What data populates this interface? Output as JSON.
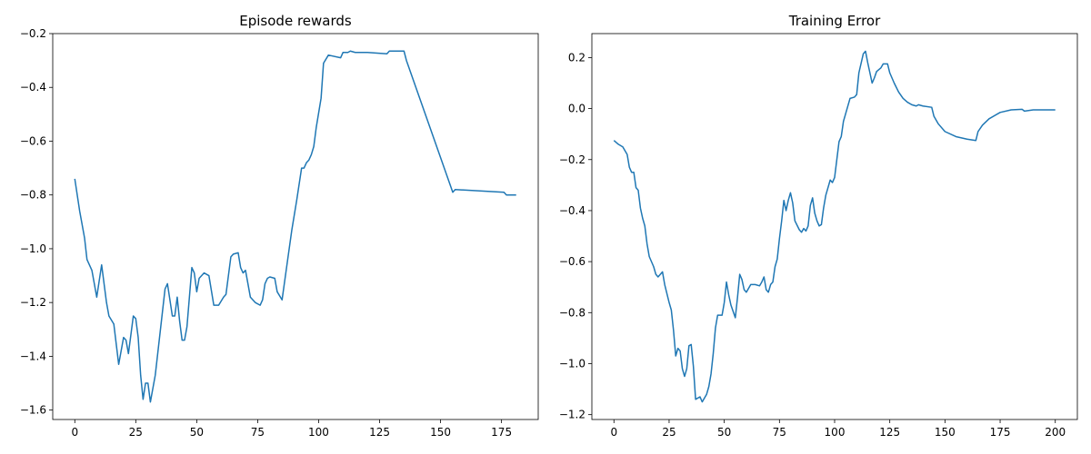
{
  "chart_data": [
    {
      "type": "line",
      "title": "Episode rewards",
      "color": "#1f77b4",
      "x": [
        0,
        2,
        4,
        5,
        7,
        9,
        11,
        13,
        14,
        16,
        18,
        20,
        21,
        22,
        24,
        25,
        26,
        27,
        28,
        29,
        30,
        31,
        33,
        35,
        37,
        38,
        40,
        41,
        42,
        43,
        44,
        45,
        46,
        48,
        49,
        50,
        51,
        53,
        55,
        57,
        59,
        61,
        62,
        64,
        65,
        67,
        68,
        69,
        70,
        71,
        72,
        74,
        76,
        77,
        78,
        79,
        80,
        82,
        83,
        85,
        87,
        89,
        91,
        93,
        94,
        95,
        96,
        97,
        98,
        99,
        101,
        102,
        104,
        109,
        110,
        112,
        113,
        115,
        120,
        128,
        129,
        135,
        136,
        155,
        156,
        176,
        177,
        181
      ],
      "values": [
        -0.74,
        -0.86,
        -0.96,
        -1.04,
        -1.08,
        -1.18,
        -1.06,
        -1.2,
        -1.25,
        -1.28,
        -1.43,
        -1.33,
        -1.34,
        -1.39,
        -1.25,
        -1.26,
        -1.33,
        -1.47,
        -1.56,
        -1.5,
        -1.5,
        -1.57,
        -1.47,
        -1.31,
        -1.15,
        -1.13,
        -1.25,
        -1.25,
        -1.18,
        -1.27,
        -1.34,
        -1.34,
        -1.29,
        -1.07,
        -1.09,
        -1.16,
        -1.11,
        -1.09,
        -1.1,
        -1.21,
        -1.21,
        -1.18,
        -1.17,
        -1.03,
        -1.02,
        -1.015,
        -1.07,
        -1.09,
        -1.08,
        -1.13,
        -1.18,
        -1.2,
        -1.21,
        -1.19,
        -1.13,
        -1.11,
        -1.105,
        -1.11,
        -1.16,
        -1.19,
        -1.06,
        -0.93,
        -0.82,
        -0.7,
        -0.7,
        -0.68,
        -0.67,
        -0.65,
        -0.62,
        -0.55,
        -0.44,
        -0.31,
        -0.28,
        -0.29,
        -0.27,
        -0.27,
        -0.265,
        -0.27,
        -0.27,
        -0.275,
        -0.265,
        -0.265,
        -0.3,
        -0.79,
        -0.78,
        -0.79,
        -0.8,
        -0.8
      ],
      "xlim": [
        -9.05,
        190.05
      ],
      "ylim": [
        -1.635,
        -0.2
      ],
      "xticks": [
        0,
        25,
        50,
        75,
        100,
        125,
        150,
        175
      ],
      "yticks": [
        {
          "value": -1.6,
          "label": "−1.6"
        },
        {
          "value": -1.4,
          "label": "−1.4"
        },
        {
          "value": -1.2,
          "label": "−1.2"
        },
        {
          "value": -1.0,
          "label": "−1.0"
        },
        {
          "value": -0.8,
          "label": "−0.8"
        },
        {
          "value": -0.6,
          "label": "−0.6"
        },
        {
          "value": -0.4,
          "label": "−0.4"
        },
        {
          "value": -0.2,
          "label": "−0.2"
        }
      ]
    },
    {
      "type": "line",
      "title": "Training Error",
      "color": "#1f77b4",
      "x": [
        0,
        2,
        4,
        6,
        7,
        8,
        9,
        10,
        11,
        12,
        13,
        14,
        15,
        16,
        18,
        19,
        20,
        22,
        23,
        25,
        26,
        27,
        28,
        29,
        30,
        31,
        32,
        33,
        34,
        35,
        36,
        37,
        39,
        40,
        42,
        43,
        44,
        45,
        46,
        47,
        49,
        50,
        51,
        52,
        53,
        55,
        56,
        57,
        58,
        59,
        60,
        62,
        64,
        66,
        67,
        68,
        69,
        70,
        71,
        72,
        73,
        74,
        75,
        76,
        77,
        78,
        79,
        80,
        81,
        82,
        84,
        85,
        86,
        87,
        88,
        89,
        90,
        91,
        92,
        93,
        94,
        95,
        96,
        97,
        98,
        99,
        100,
        101,
        102,
        103,
        104,
        105,
        107,
        109,
        110,
        111,
        113,
        114,
        115,
        117,
        118,
        119,
        121,
        122,
        124,
        125,
        127,
        129,
        131,
        133,
        135,
        137,
        138,
        140,
        144,
        145,
        147,
        150,
        155,
        160,
        164,
        165,
        167,
        170,
        175,
        180,
        185,
        186,
        190,
        200
      ],
      "values": [
        -0.125,
        -0.14,
        -0.15,
        -0.18,
        -0.23,
        -0.25,
        -0.25,
        -0.31,
        -0.32,
        -0.39,
        -0.43,
        -0.46,
        -0.53,
        -0.58,
        -0.62,
        -0.65,
        -0.66,
        -0.64,
        -0.69,
        -0.76,
        -0.79,
        -0.87,
        -0.97,
        -0.94,
        -0.95,
        -1.02,
        -1.05,
        -1.02,
        -0.93,
        -0.925,
        -1.01,
        -1.14,
        -1.13,
        -1.15,
        -1.12,
        -1.09,
        -1.04,
        -0.96,
        -0.86,
        -0.81,
        -0.81,
        -0.76,
        -0.68,
        -0.73,
        -0.77,
        -0.82,
        -0.74,
        -0.65,
        -0.67,
        -0.71,
        -0.72,
        -0.69,
        -0.69,
        -0.695,
        -0.68,
        -0.66,
        -0.71,
        -0.72,
        -0.69,
        -0.68,
        -0.62,
        -0.59,
        -0.51,
        -0.44,
        -0.36,
        -0.4,
        -0.36,
        -0.33,
        -0.37,
        -0.44,
        -0.475,
        -0.485,
        -0.47,
        -0.48,
        -0.46,
        -0.38,
        -0.35,
        -0.41,
        -0.44,
        -0.46,
        -0.455,
        -0.39,
        -0.34,
        -0.31,
        -0.28,
        -0.29,
        -0.27,
        -0.2,
        -0.13,
        -0.11,
        -0.05,
        -0.02,
        0.04,
        0.045,
        0.055,
        0.14,
        0.215,
        0.225,
        0.18,
        0.1,
        0.12,
        0.145,
        0.16,
        0.175,
        0.175,
        0.14,
        0.1,
        0.065,
        0.04,
        0.025,
        0.015,
        0.01,
        0.015,
        0.01,
        0.005,
        -0.03,
        -0.06,
        -0.09,
        -0.11,
        -0.12,
        -0.125,
        -0.09,
        -0.065,
        -0.04,
        -0.015,
        -0.005,
        -0.003,
        -0.01,
        -0.005,
        -0.005
      ],
      "xlim": [
        -10,
        210
      ],
      "ylim": [
        -1.219,
        0.294
      ],
      "xticks": [
        0,
        25,
        50,
        75,
        100,
        125,
        150,
        175,
        200
      ],
      "yticks": [
        {
          "value": -1.2,
          "label": "−1.2"
        },
        {
          "value": -1.0,
          "label": "−1.0"
        },
        {
          "value": -0.8,
          "label": "−0.8"
        },
        {
          "value": -0.6,
          "label": "−0.6"
        },
        {
          "value": -0.4,
          "label": "−0.4"
        },
        {
          "value": -0.2,
          "label": "−0.2"
        },
        {
          "value": 0,
          "label": "0.0"
        },
        0.2
      ]
    }
  ]
}
